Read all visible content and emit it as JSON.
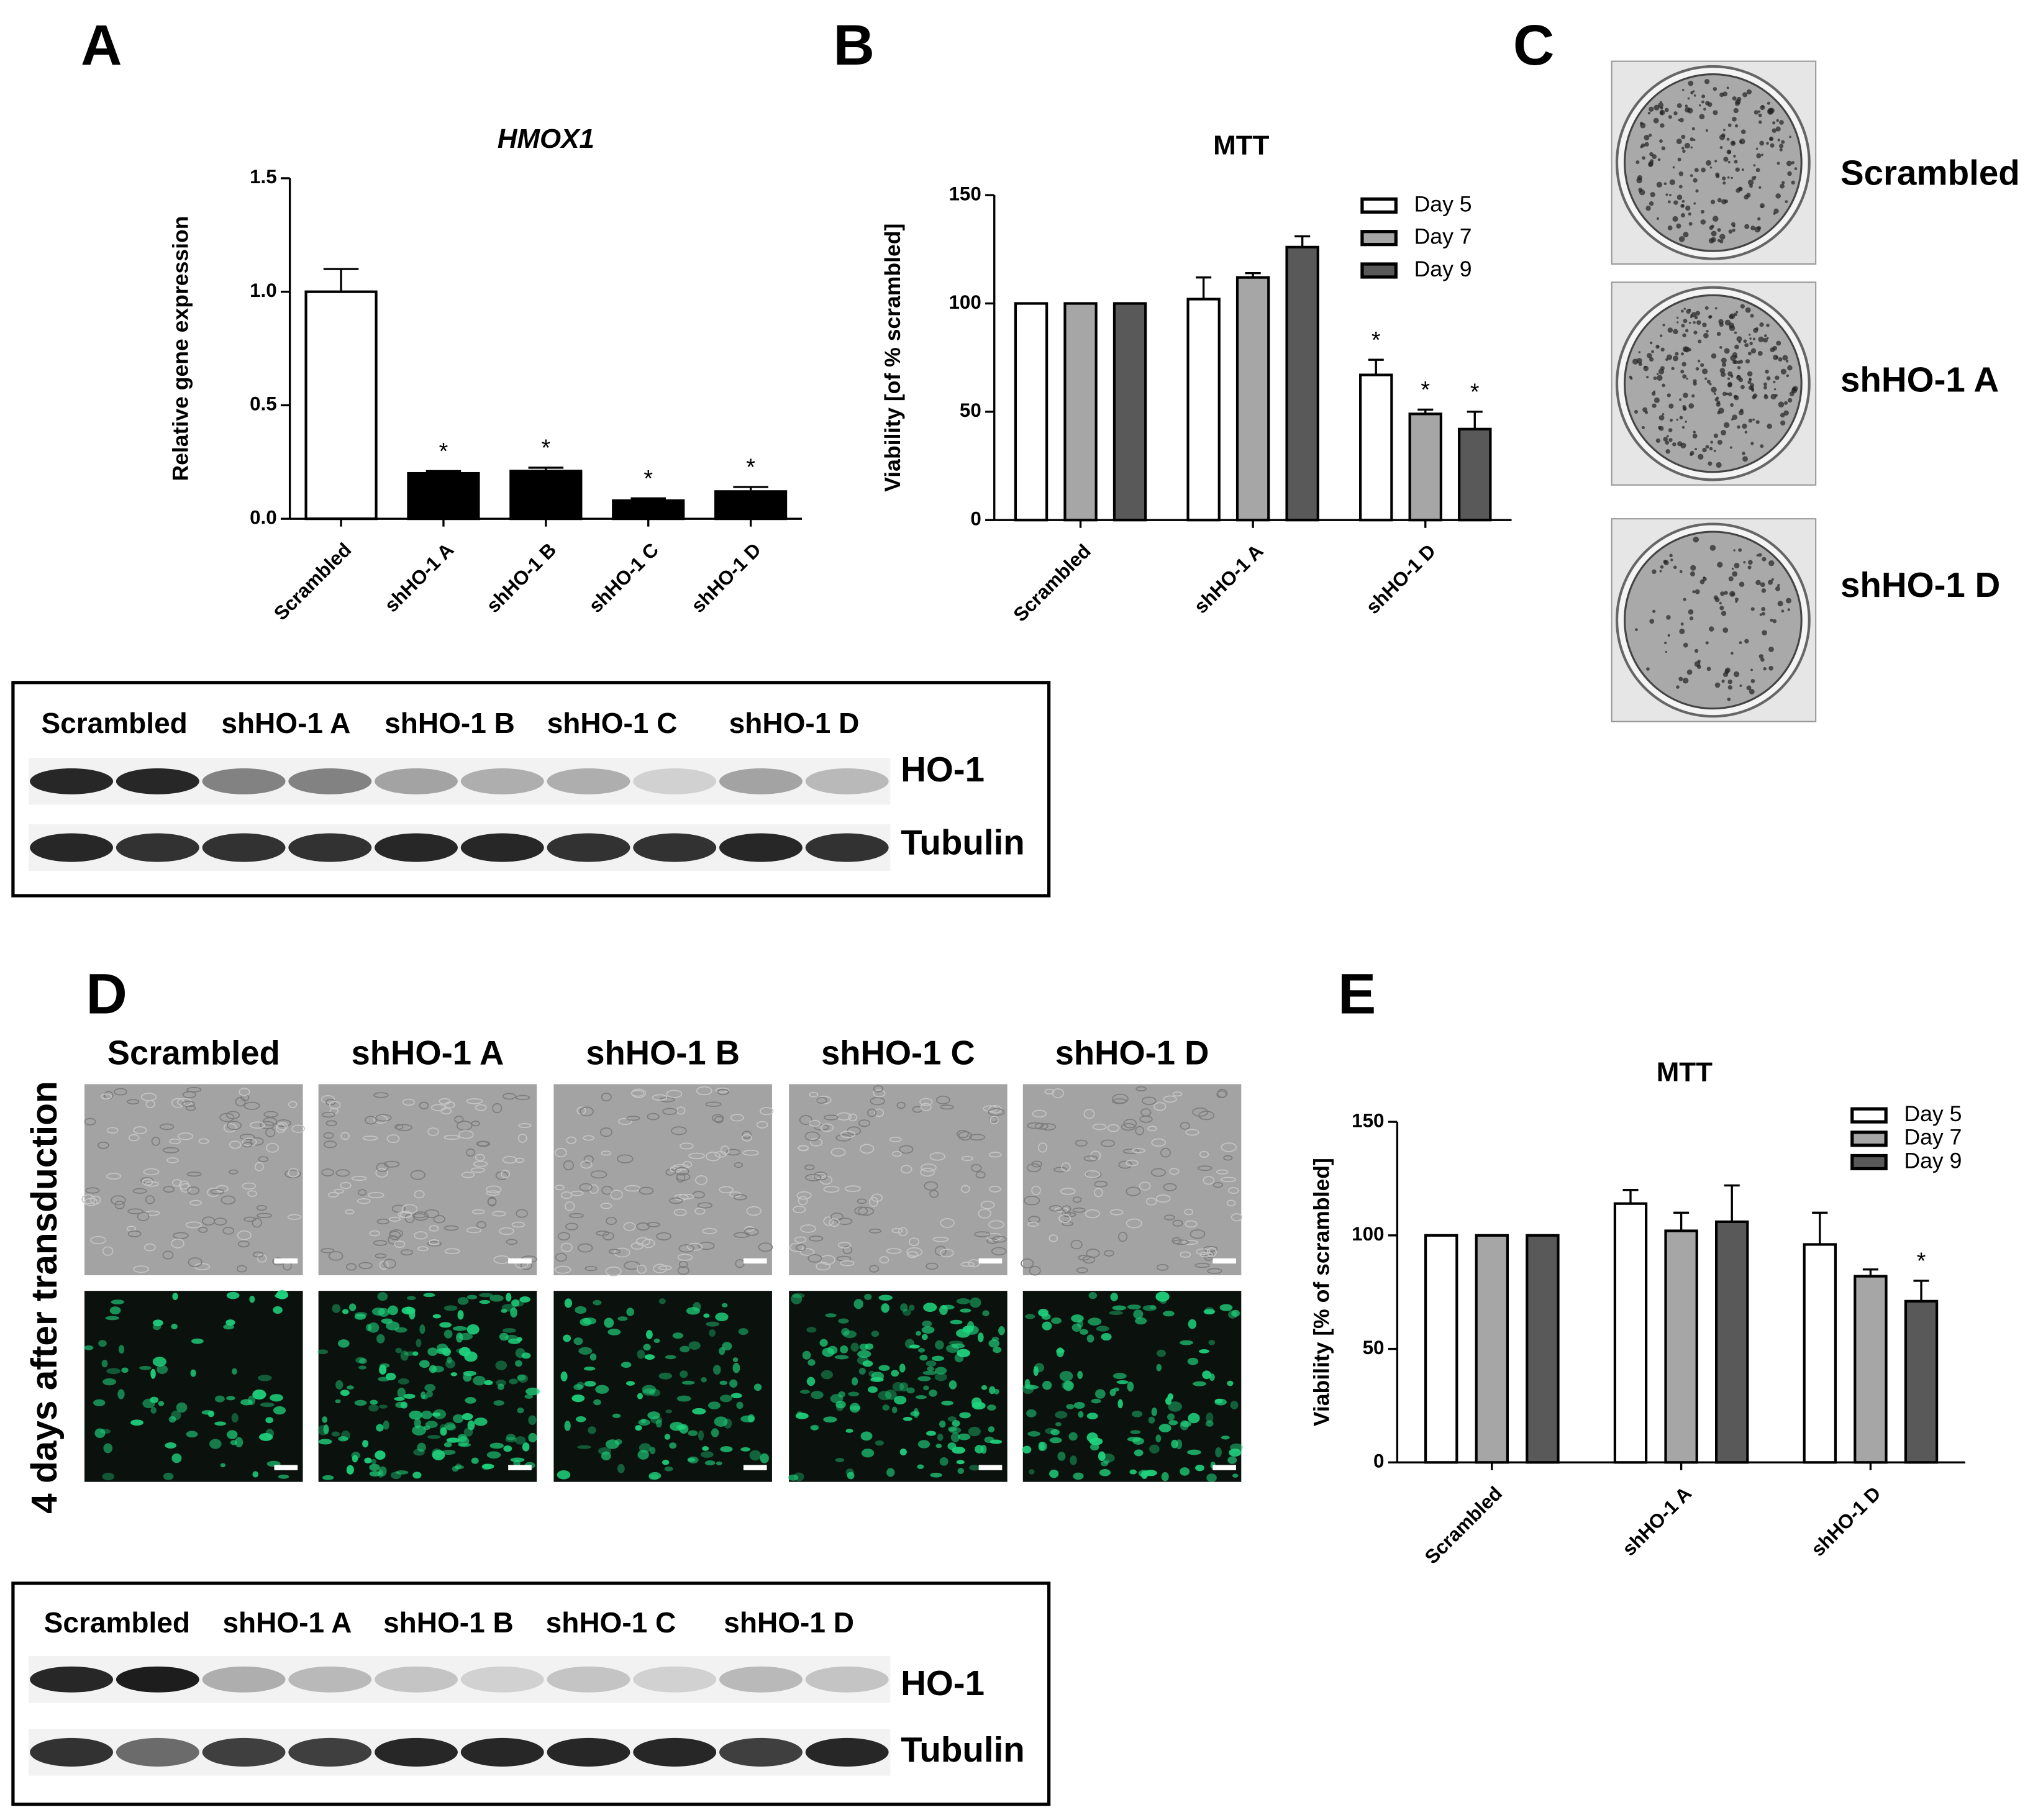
{
  "panel_labels": [
    "A",
    "B",
    "C",
    "D",
    "E"
  ],
  "chart_data": [
    {
      "type": "bar",
      "title": "HMOX1",
      "y_label": "Relative gene expression",
      "categories": [
        "Scrambled",
        "shHO-1 A",
        "shHO-1 B",
        "shHO-1 C",
        "shHO-1 D"
      ],
      "values": [
        1.0,
        0.2,
        0.21,
        0.08,
        0.12
      ],
      "errors": [
        0.1,
        0.01,
        0.015,
        0.01,
        0.02
      ],
      "colors": [
        "#ffffff",
        "#000000",
        "#000000",
        "#000000",
        "#000000"
      ],
      "significant": [
        false,
        true,
        true,
        true,
        true
      ],
      "significance_label": "*",
      "ylim": [
        0,
        1.5
      ],
      "yticks": [
        {
          "value": 0,
          "label": "0.0"
        },
        0.5,
        {
          "value": 1,
          "label": "1.0"
        },
        1.5
      ]
    },
    {
      "type": "bar",
      "title": "MTT",
      "y_label": "Viability [of % scrambled]",
      "categories": [
        "Scrambled",
        "shHO-1 A",
        "shHO-1 D"
      ],
      "series": [
        {
          "name": "Day 5",
          "color": "#ffffff",
          "values": [
            100,
            102,
            67
          ],
          "errors": [
            0,
            10,
            7
          ],
          "significant": [
            false,
            false,
            true
          ]
        },
        {
          "name": "Day 7",
          "color": "#a6a6a6",
          "values": [
            100,
            112,
            49
          ],
          "errors": [
            0,
            2,
            2
          ],
          "significant": [
            false,
            false,
            true
          ]
        },
        {
          "name": "Day 9",
          "color": "#595959",
          "values": [
            100,
            126,
            42
          ],
          "errors": [
            0,
            5,
            8
          ],
          "significant": [
            false,
            false,
            true
          ]
        }
      ],
      "significance_label": "*",
      "legend": "upper right",
      "ylim": [
        0,
        150
      ],
      "yticks": [
        0,
        50,
        100,
        150
      ]
    },
    {
      "type": "bar",
      "title": "MTT",
      "y_label": "Viability [% of scrambled]",
      "categories": [
        "Scrambled",
        "shHO-1 A",
        "shHO-1 D"
      ],
      "series": [
        {
          "name": "Day 5",
          "color": "#ffffff",
          "values": [
            100,
            114,
            96
          ],
          "errors": [
            0,
            6,
            14
          ],
          "significant": [
            false,
            false,
            false
          ]
        },
        {
          "name": "Day 7",
          "color": "#a6a6a6",
          "values": [
            100,
            102,
            82
          ],
          "errors": [
            0,
            8,
            3
          ],
          "significant": [
            false,
            false,
            false
          ]
        },
        {
          "name": "Day 9",
          "color": "#595959",
          "values": [
            100,
            106,
            71
          ],
          "errors": [
            0,
            16,
            9
          ],
          "significant": [
            false,
            false,
            true
          ]
        }
      ],
      "significance_label": "*",
      "legend": "upper right",
      "ylim": [
        0,
        150
      ],
      "yticks": [
        0,
        50,
        100,
        150
      ]
    }
  ],
  "colony_assay": {
    "labels": [
      "Scrambled",
      "shHO-1 A",
      "shHO-1 D"
    ]
  },
  "microscopy": {
    "row_label": "4 days after transduction",
    "columns": [
      "Scrambled",
      "shHO-1 A",
      "shHO-1 B",
      "shHO-1 C",
      "shHO-1 D"
    ]
  },
  "western_blots": [
    {
      "lanes": [
        "Scrambled",
        "shHO-1 A",
        "shHO-1 B",
        "shHO-1 C",
        "shHO-1 D"
      ],
      "proteins": [
        "HO-1",
        "Tubulin"
      ]
    },
    {
      "lanes": [
        "Scrambled",
        "shHO-1 A",
        "shHO-1 B",
        "shHO-1 C",
        "shHO-1 D"
      ],
      "proteins": [
        "HO-1",
        "Tubulin"
      ]
    }
  ]
}
